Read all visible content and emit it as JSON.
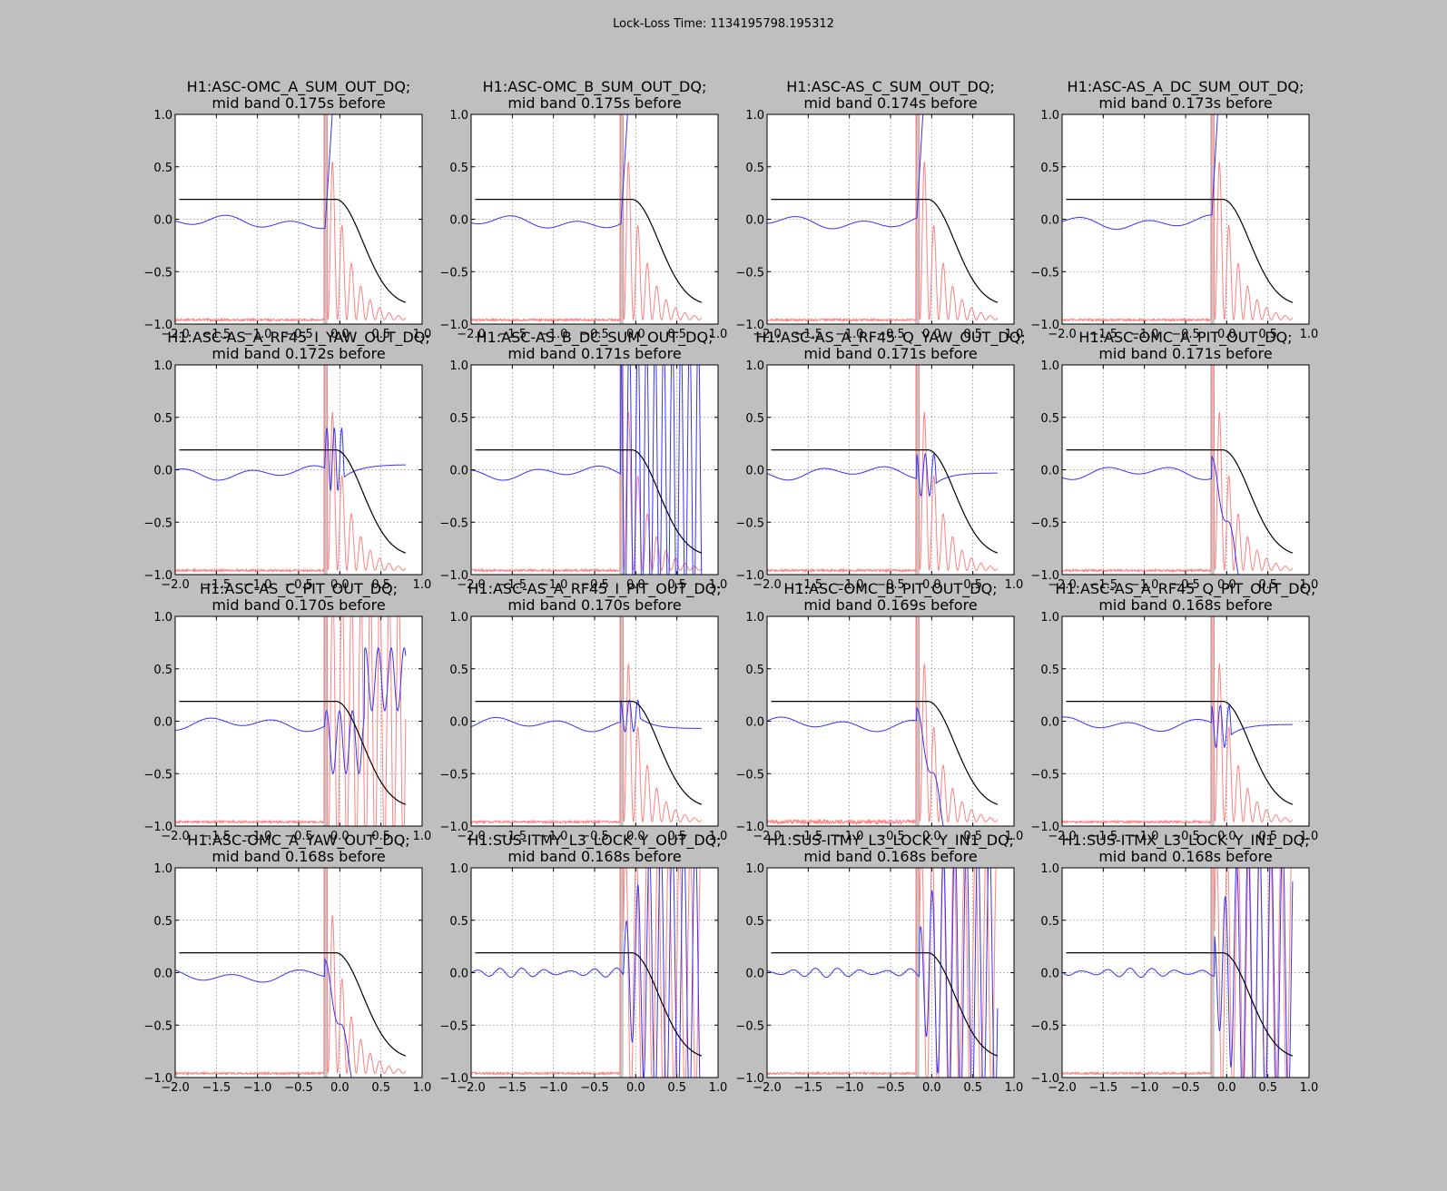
{
  "suptitle": "Lock-Loss Time: 1134195798.195312",
  "colors": {
    "figure_bg": "#bfbfbf",
    "axes_bg": "#ffffff",
    "black_line": "#000000",
    "blue_signal": "#3333ff",
    "red_signal": "#ff8080",
    "gray_band": "#999999",
    "grid": "#888888"
  },
  "axes": {
    "xlim": [
      -2.0,
      1.0
    ],
    "ylim": [
      -1.0,
      1.0
    ],
    "xticks": [
      -2.0,
      -1.5,
      -1.0,
      -0.5,
      0.0,
      0.5,
      1.0
    ],
    "xtick_labels": [
      "−2.0",
      "−1.5",
      "−1.0",
      "−0.5",
      "0.0",
      "0.5",
      "1.0"
    ],
    "yticks": [
      -1.0,
      -0.5,
      0.0,
      0.5,
      1.0
    ],
    "ytick_labels": [
      "−1.0",
      "−0.5",
      "0.0",
      "0.5",
      "1.0"
    ],
    "grid": true
  },
  "panels": [
    {
      "title_line1": "H1:ASC-OMC_A_SUM_OUT_DQ;",
      "title_line2": "mid band 0.175s before",
      "pattern": "sum_a",
      "noise_amp": 0.01
    },
    {
      "title_line1": "H1:ASC-OMC_B_SUM_OUT_DQ;",
      "title_line2": "mid band 0.175s before",
      "pattern": "sum_a",
      "noise_amp": 0.01
    },
    {
      "title_line1": "H1:ASC-AS_C_SUM_OUT_DQ;",
      "title_line2": "mid band 0.174s before",
      "pattern": "sum_c",
      "noise_amp": 0.01
    },
    {
      "title_line1": "H1:ASC-AS_A_DC_SUM_OUT_DQ;",
      "title_line2": "mid band 0.173s before",
      "pattern": "sum_c",
      "noise_amp": 0.01
    },
    {
      "title_line1": "H1:ASC-AS_A_RF45_I_YAW_OUT_DQ;",
      "title_line2": "mid band 0.172s before",
      "pattern": "settle_up",
      "noise_amp": 0.01
    },
    {
      "title_line1": "H1:ASC-AS_B_DC_SUM_OUT_DQ;",
      "title_line2": "mid band 0.171s before",
      "pattern": "vert",
      "noise_amp": 0.01
    },
    {
      "title_line1": "H1:ASC-AS_A_RF45_Q_YAW_OUT_DQ;",
      "title_line2": "mid band 0.171s before",
      "pattern": "settle_flat",
      "noise_amp": 0.01
    },
    {
      "title_line1": "H1:ASC-OMC_A_PIT_OUT_DQ;",
      "title_line2": "mid band 0.171s before",
      "pattern": "drop",
      "noise_amp": 0.01
    },
    {
      "title_line1": "H1:ASC-AS_C_PIT_OUT_DQ;",
      "title_line2": "mid band 0.170s before",
      "pattern": "chaotic",
      "noise_amp": 0.01
    },
    {
      "title_line1": "H1:ASC-AS_A_RF45_I_PIT_OUT_DQ;",
      "title_line2": "mid band 0.170s before",
      "pattern": "settle_down",
      "noise_amp": 0.01
    },
    {
      "title_line1": "H1:ASC-OMC_B_PIT_OUT_DQ;",
      "title_line2": "mid band 0.169s before",
      "pattern": "drop",
      "noise_amp": 0.02
    },
    {
      "title_line1": "H1:ASC-AS_A_RF45_Q_PIT_OUT_DQ;",
      "title_line2": "mid band 0.168s before",
      "pattern": "settle_flat",
      "noise_amp": 0.01
    },
    {
      "title_line1": "H1:ASC-OMC_A_YAW_OUT_DQ;",
      "title_line2": "mid band 0.168s before",
      "pattern": "drop",
      "noise_amp": 0.01
    },
    {
      "title_line1": "H1:SUS-ITMY_L3_LOCK_Y_OUT_DQ;",
      "title_line2": "mid band 0.168s before",
      "pattern": "osc",
      "noise_amp": 0.01
    },
    {
      "title_line1": "H1:SUS-ITMY_L3_LOCK_Y_IN1_DQ;",
      "title_line2": "mid band 0.168s before",
      "pattern": "osc",
      "noise_amp": 0.01
    },
    {
      "title_line1": "H1:SUS-ITMX_L3_LOCK_Y_IN1_DQ;",
      "title_line2": "mid band 0.168s before",
      "pattern": "osc",
      "noise_amp": 0.01
    }
  ],
  "chart_data": [
    {
      "type": "line",
      "xlim": [
        -2.0,
        1.0
      ],
      "ylim": [
        -1.0,
        1.0
      ],
      "grid": true,
      "series": [
        {
          "name": "",
          "color": "#000000",
          "x": [
            -1.95,
            -0.05,
            0.0,
            0.1,
            0.2,
            0.3,
            0.4,
            0.5,
            0.6,
            0.7,
            0.8
          ],
          "y": [
            0.19,
            0.19,
            0.17,
            0.05,
            -0.12,
            -0.29,
            -0.45,
            -0.58,
            -0.68,
            -0.76,
            -0.82
          ]
        },
        {
          "name": "",
          "color": "#3333ff",
          "x": [
            -2.0,
            -1.8,
            -1.6,
            -1.4,
            -1.2,
            -1.0,
            -0.8,
            -0.6,
            -0.4,
            -0.2,
            -0.15,
            -0.1
          ],
          "y": [
            0.05,
            0.07,
            0.06,
            0.0,
            -0.02,
            -0.04,
            -0.06,
            -0.08,
            -0.08,
            -0.06,
            0.05,
            0.2
          ]
        },
        {
          "name": "",
          "color": "#ff8080",
          "x": [
            -2.0,
            -0.2,
            -0.15,
            0.0,
            0.2,
            0.4,
            0.8
          ],
          "y": [
            -0.96,
            -0.96,
            1.0,
            -0.4,
            -0.9,
            -0.95,
            -0.96
          ]
        }
      ],
      "vline_x": -0.175
    }
  ]
}
